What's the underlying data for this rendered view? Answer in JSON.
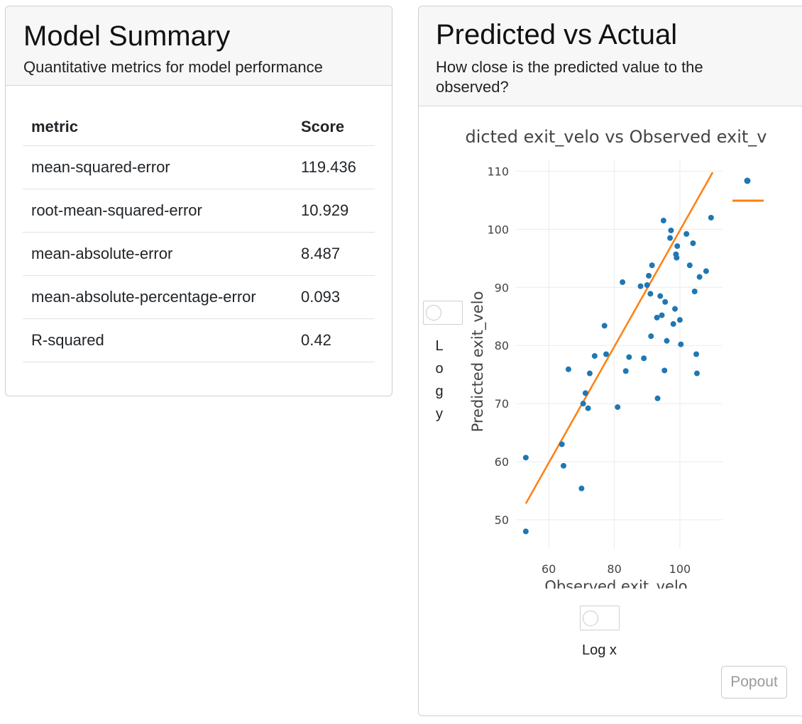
{
  "summary": {
    "title": "Model Summary",
    "subtitle": "Quantitative metrics for model performance",
    "columns": [
      "metric",
      "Score"
    ],
    "rows": [
      {
        "metric": "mean-squared-error",
        "score": "119.436"
      },
      {
        "metric": "root-mean-squared-error",
        "score": "10.929"
      },
      {
        "metric": "mean-absolute-error",
        "score": "8.487"
      },
      {
        "metric": "mean-absolute-percentage-error",
        "score": "0.093"
      },
      {
        "metric": "R-squared",
        "score": "0.42"
      }
    ]
  },
  "pva": {
    "title": "Predicted vs Actual",
    "subtitle": "How close is the predicted value to the observed?",
    "log_y_label": "Log y",
    "log_x_label": "Log x",
    "popout_label": "Popout"
  },
  "chart_data": {
    "type": "scatter",
    "title": "dicted exit_velo vs Observed exit_v",
    "xlabel": "Observed exit_velo",
    "ylabel": "Predicted exit_velo",
    "xlim": [
      50,
      113
    ],
    "ylim": [
      45,
      112
    ],
    "xticks": [
      60,
      80,
      100
    ],
    "yticks": [
      50,
      60,
      70,
      80,
      90,
      100,
      110
    ],
    "grid": true,
    "legend_position": "top-right",
    "colors": {
      "points": "#1f77b4",
      "line": "#ff7f0e"
    },
    "series": [
      {
        "kind": "points",
        "points": [
          [
            53,
            48.0
          ],
          [
            53,
            60.7
          ],
          [
            64,
            63.0
          ],
          [
            64.5,
            59.3
          ],
          [
            66,
            75.9
          ],
          [
            70,
            55.4
          ],
          [
            70.5,
            70.0
          ],
          [
            71.2,
            71.8
          ],
          [
            72,
            69.2
          ],
          [
            72.5,
            75.2
          ],
          [
            74,
            78.2
          ],
          [
            77,
            83.4
          ],
          [
            77.5,
            78.5
          ],
          [
            81,
            69.4
          ],
          [
            82.5,
            90.9
          ],
          [
            83.5,
            75.6
          ],
          [
            84.5,
            78.0
          ],
          [
            88,
            90.2
          ],
          [
            89,
            77.8
          ],
          [
            90,
            90.4
          ],
          [
            90.5,
            92.0
          ],
          [
            91,
            88.9
          ],
          [
            91.2,
            81.6
          ],
          [
            91.5,
            93.8
          ],
          [
            93,
            84.8
          ],
          [
            93.2,
            70.9
          ],
          [
            94,
            88.5
          ],
          [
            94.5,
            85.2
          ],
          [
            95,
            101.5
          ],
          [
            95.3,
            75.7
          ],
          [
            95.5,
            87.5
          ],
          [
            96,
            80.8
          ],
          [
            97,
            98.5
          ],
          [
            97.3,
            99.8
          ],
          [
            98,
            83.7
          ],
          [
            98.5,
            86.3
          ],
          [
            98.8,
            95.7
          ],
          [
            99,
            95.1
          ],
          [
            99.2,
            97.1
          ],
          [
            100,
            84.4
          ],
          [
            100.3,
            80.2
          ],
          [
            102,
            99.2
          ],
          [
            103,
            93.8
          ],
          [
            104,
            97.6
          ],
          [
            104.5,
            89.3
          ],
          [
            105,
            78.5
          ],
          [
            105.2,
            75.2
          ],
          [
            106,
            91.8
          ],
          [
            108,
            92.8
          ],
          [
            109.5,
            102.0
          ]
        ]
      },
      {
        "kind": "line",
        "points": [
          [
            53,
            52.8
          ],
          [
            110,
            109.8
          ]
        ]
      }
    ]
  }
}
